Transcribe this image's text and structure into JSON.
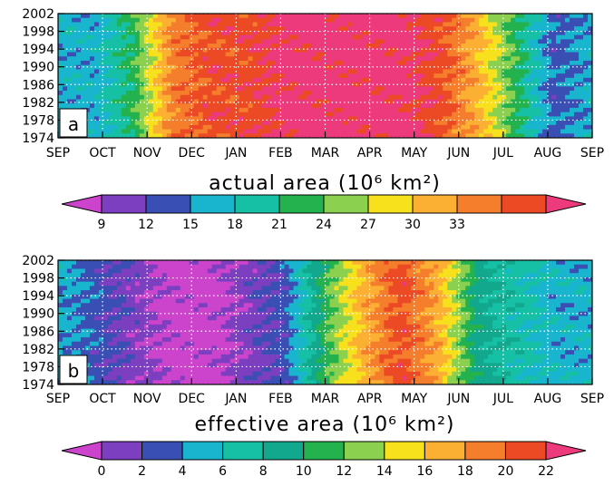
{
  "chart_data": [
    {
      "type": "heatmap",
      "panel_label": "a",
      "xlabel": "actual area (10⁶ km²)",
      "x_tick_labels": [
        "SEP",
        "OCT",
        "NOV",
        "DEC",
        "JAN",
        "FEB",
        "MAR",
        "APR",
        "MAY",
        "JUN",
        "JUL",
        "AUG",
        "SEP"
      ],
      "y_tick_labels": [
        "2002",
        "1998",
        "1994",
        "1990",
        "1986",
        "1982",
        "1978",
        "1974"
      ],
      "ylim": [
        1974,
        2002
      ],
      "grid": true,
      "colorbar": {
        "ticks": [
          "9",
          "12",
          "15",
          "18",
          "21",
          "24",
          "27",
          "30",
          "33"
        ],
        "colors": [
          "#cc44cc",
          "#7b3fbf",
          "#3a4fb4",
          "#19b5cf",
          "#16c0a5",
          "#23b24d",
          "#8bd04e",
          "#f7e11c",
          "#fbb033",
          "#f57e2c",
          "#ec4a25",
          "#ec3a7c"
        ]
      },
      "monthly_value_bin": [
        3,
        3,
        5,
        9,
        10,
        10,
        11,
        11,
        11,
        11,
        10,
        8,
        5,
        2,
        3
      ]
    },
    {
      "type": "heatmap",
      "panel_label": "b",
      "xlabel": "effective area (10⁶ km²)",
      "x_tick_labels": [
        "SEP",
        "OCT",
        "NOV",
        "DEC",
        "JAN",
        "FEB",
        "MAR",
        "APR",
        "MAY",
        "JUN",
        "JUL",
        "AUG",
        "SEP"
      ],
      "y_tick_labels": [
        "2002",
        "1998",
        "1994",
        "1990",
        "1986",
        "1982",
        "1978",
        "1974"
      ],
      "ylim": [
        1974,
        2002
      ],
      "grid": true,
      "colorbar": {
        "ticks": [
          "0",
          "2",
          "4",
          "6",
          "8",
          "10",
          "12",
          "14",
          "16",
          "18",
          "20",
          "22"
        ],
        "colors": [
          "#cc44cc",
          "#7b3fbf",
          "#3a4fb4",
          "#19b5cf",
          "#16c0a5",
          "#12a88e",
          "#23b24d",
          "#8bd04e",
          "#f7e11c",
          "#fbb033",
          "#f57e2c",
          "#ec4a25",
          "#ec3a7c"
        ]
      },
      "monthly_value_bin": [
        3,
        2,
        1,
        0,
        0,
        1,
        2,
        6,
        9,
        11,
        9,
        5,
        4,
        3,
        3
      ]
    }
  ]
}
